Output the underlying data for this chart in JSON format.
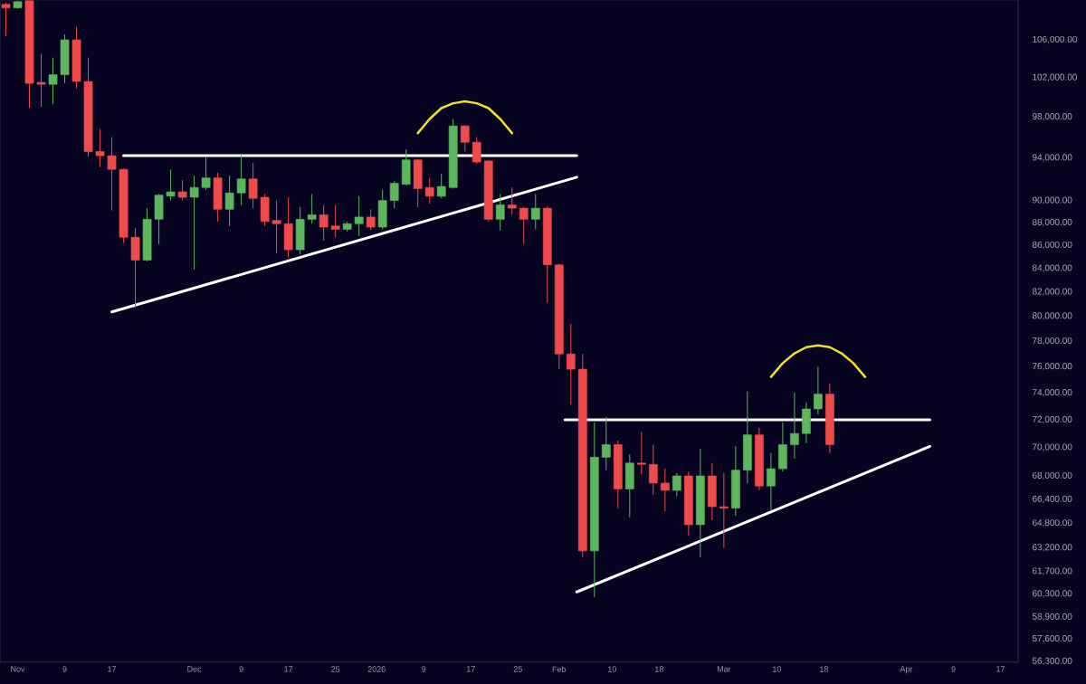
{
  "chart_data": {
    "type": "candlestick",
    "x": [
      "2025-10-30",
      "2025-11-01",
      "2025-11-03",
      "2025-11-05",
      "2025-11-07",
      "2025-11-09",
      "2025-11-11",
      "2025-11-13",
      "2025-11-15",
      "2025-11-17",
      "2025-11-19",
      "2025-11-21",
      "2025-11-23",
      "2025-11-25",
      "2025-11-27",
      "2025-11-29",
      "2025-12-01",
      "2025-12-03",
      "2025-12-05",
      "2025-12-07",
      "2025-12-09",
      "2025-12-11",
      "2025-12-13",
      "2025-12-15",
      "2025-12-17",
      "2025-12-19",
      "2025-12-21",
      "2025-12-23",
      "2025-12-25",
      "2025-12-27",
      "2025-12-29",
      "2025-12-31",
      "2026-01-02",
      "2026-01-04",
      "2026-01-06",
      "2026-01-08",
      "2026-01-10",
      "2026-01-12",
      "2026-01-14",
      "2026-01-16",
      "2026-01-18",
      "2026-01-20",
      "2026-01-22",
      "2026-01-24",
      "2026-01-26",
      "2026-01-28",
      "2026-01-30",
      "2026-02-01",
      "2026-02-03",
      "2026-02-05",
      "2026-02-07",
      "2026-02-09",
      "2026-02-11",
      "2026-02-13",
      "2026-02-15",
      "2026-02-17",
      "2026-02-19",
      "2026-02-21",
      "2026-02-23",
      "2026-02-25",
      "2026-02-27",
      "2026-03-01",
      "2026-03-03",
      "2026-03-05",
      "2026-03-07",
      "2026-03-09",
      "2026-03-11",
      "2026-03-13",
      "2026-03-15",
      "2026-03-17",
      "2026-03-19"
    ],
    "ohlc": [
      [
        109900,
        110100,
        106400,
        109500
      ],
      [
        109500,
        110300,
        109400,
        110200
      ],
      [
        110300,
        110300,
        98900,
        101400
      ],
      [
        101500,
        104500,
        99000,
        101300
      ],
      [
        101300,
        104100,
        99300,
        102300
      ],
      [
        102300,
        106600,
        101400,
        106000
      ],
      [
        106000,
        107400,
        100900,
        101600
      ],
      [
        101600,
        104100,
        94100,
        94600
      ],
      [
        94600,
        96800,
        93100,
        94200
      ],
      [
        94200,
        96000,
        89100,
        92900
      ],
      [
        92900,
        93000,
        86200,
        86700
      ],
      [
        86700,
        87500,
        80700,
        84700
      ],
      [
        84700,
        89300,
        84600,
        88300
      ],
      [
        88300,
        90600,
        86100,
        90500
      ],
      [
        90400,
        92900,
        90000,
        90800
      ],
      [
        90800,
        91900,
        90000,
        90300
      ],
      [
        90300,
        92300,
        83900,
        91200
      ],
      [
        91200,
        94100,
        91000,
        92100
      ],
      [
        92100,
        92600,
        88100,
        89200
      ],
      [
        89200,
        92300,
        87700,
        90700
      ],
      [
        90700,
        94400,
        89600,
        92000
      ],
      [
        92000,
        93500,
        89300,
        90200
      ],
      [
        90300,
        90600,
        87700,
        88100
      ],
      [
        88200,
        90000,
        85300,
        87900
      ],
      [
        87900,
        90300,
        84900,
        85600
      ],
      [
        85600,
        89400,
        85200,
        88300
      ],
      [
        88300,
        90600,
        87900,
        88700
      ],
      [
        88700,
        89600,
        86400,
        87600
      ],
      [
        87700,
        89600,
        86700,
        87400
      ],
      [
        87400,
        88100,
        87200,
        87900
      ],
      [
        87900,
        90400,
        86800,
        88500
      ],
      [
        88500,
        89200,
        87300,
        87600
      ],
      [
        87600,
        91000,
        87400,
        90000
      ],
      [
        90000,
        91800,
        89300,
        91600
      ],
      [
        91500,
        94800,
        91400,
        93800
      ],
      [
        93800,
        93900,
        89400,
        91100
      ],
      [
        91200,
        92100,
        89700,
        90400
      ],
      [
        90400,
        92500,
        90200,
        91300
      ],
      [
        91200,
        97800,
        91100,
        97100
      ],
      [
        97100,
        97200,
        94600,
        95500
      ],
      [
        95500,
        96000,
        93400,
        93600
      ],
      [
        93700,
        93800,
        88100,
        88300
      ],
      [
        88300,
        90600,
        87300,
        89600
      ],
      [
        89600,
        91200,
        88700,
        89300
      ],
      [
        89300,
        89400,
        86100,
        88300
      ],
      [
        88300,
        90600,
        87400,
        89300
      ],
      [
        89300,
        89500,
        81100,
        84300
      ],
      [
        84300,
        84400,
        75800,
        77000
      ],
      [
        77000,
        79400,
        73100,
        75800
      ],
      [
        75800,
        77000,
        62600,
        63000
      ],
      [
        63000,
        71800,
        60100,
        69300
      ],
      [
        69300,
        72200,
        68400,
        70200
      ],
      [
        70200,
        70500,
        65800,
        67100
      ],
      [
        67100,
        69500,
        65200,
        68900
      ],
      [
        68900,
        71100,
        68100,
        68800
      ],
      [
        68800,
        70200,
        66700,
        67500
      ],
      [
        67500,
        68500,
        65600,
        67000
      ],
      [
        67000,
        68200,
        66600,
        68000
      ],
      [
        68000,
        68300,
        64000,
        64700
      ],
      [
        64700,
        69900,
        62600,
        68000
      ],
      [
        68000,
        68900,
        65000,
        65900
      ],
      [
        65900,
        68200,
        63200,
        65800
      ],
      [
        65800,
        70100,
        65300,
        68400
      ],
      [
        68400,
        74100,
        67500,
        70900
      ],
      [
        70900,
        71400,
        67000,
        67300
      ],
      [
        67300,
        69600,
        65600,
        68500
      ],
      [
        68500,
        71800,
        68300,
        70200
      ],
      [
        70200,
        74000,
        69200,
        71000
      ],
      [
        71000,
        73300,
        70300,
        72800
      ],
      [
        72800,
        76000,
        72400,
        73900
      ],
      [
        73900,
        74700,
        69600,
        70200
      ]
    ],
    "colors": [
      "#ef4b4c",
      "#5cb65b",
      "#ef4b4c",
      "#ef4b4c",
      "#5cb65b",
      "#5cb65b",
      "#ef4b4c",
      "#ef4b4c",
      "#ef4b4c",
      "#ef4b4c",
      "#ef4b4c",
      "#ef4b4c",
      "#5cb65b",
      "#5cb65b",
      "#5cb65b",
      "#ef4b4c",
      "#5cb65b",
      "#5cb65b",
      "#ef4b4c",
      "#5cb65b",
      "#5cb65b",
      "#ef4b4c",
      "#ef4b4c",
      "#ef4b4c",
      "#ef4b4c",
      "#5cb65b",
      "#5cb65b",
      "#ef4b4c",
      "#ef4b4c",
      "#5cb65b",
      "#5cb65b",
      "#ef4b4c",
      "#5cb65b",
      "#5cb65b",
      "#5cb65b",
      "#ef4b4c",
      "#ef4b4c",
      "#5cb65b",
      "#5cb65b",
      "#ef4b4c",
      "#ef4b4c",
      "#ef4b4c",
      "#5cb65b",
      "#ef4b4c",
      "#ef4b4c",
      "#5cb65b",
      "#ef4b4c",
      "#ef4b4c",
      "#ef4b4c",
      "#ef4b4c",
      "#5cb65b",
      "#5cb65b",
      "#ef4b4c",
      "#5cb65b",
      "#ef4b4c",
      "#ef4b4c",
      "#ef4b4c",
      "#5cb65b",
      "#ef4b4c",
      "#5cb65b",
      "#ef4b4c",
      "#ef4b4c",
      "#5cb65b",
      "#5cb65b",
      "#ef4b4c",
      "#5cb65b",
      "#5cb65b",
      "#5cb65b",
      "#5cb65b",
      "#5cb65b",
      "#ef4b4c"
    ],
    "series": [
      {
        "type": "line",
        "color": "#ffffff",
        "x": [
          "2025-11-19",
          "2026-02-04"
        ],
        "values": [
          94200,
          94200
        ]
      },
      {
        "type": "line",
        "color": "#ffffff",
        "x": [
          "2025-11-17",
          "2026-02-04"
        ],
        "values": [
          80350,
          92160
        ]
      },
      {
        "type": "line",
        "color": "#ffffff",
        "x": [
          "2026-02-02",
          "2026-04-05"
        ],
        "values": [
          72000,
          72000
        ]
      },
      {
        "type": "line",
        "color": "#ffffff",
        "x": [
          "2026-02-04",
          "2026-04-05"
        ],
        "values": [
          60420,
          70070
        ]
      },
      {
        "type": "line",
        "color": "#f2e02a",
        "x": [
          "2026-01-08",
          "2026-01-10",
          "2026-01-12",
          "2026-01-14",
          "2026-01-16",
          "2026-01-18",
          "2026-01-20",
          "2026-01-22",
          "2026-01-24"
        ],
        "values": [
          96390,
          97790,
          98880,
          99370,
          99560,
          99370,
          98880,
          97790,
          96390
        ]
      },
      {
        "type": "line",
        "color": "#f2e02a",
        "x": [
          "2026-03-09",
          "2026-03-11",
          "2026-03-13",
          "2026-03-15",
          "2026-03-17",
          "2026-03-19",
          "2026-03-21",
          "2026-03-23",
          "2026-03-25"
        ],
        "values": [
          75210,
          76270,
          77040,
          77520,
          77670,
          77520,
          77040,
          76270,
          75210
        ]
      }
    ],
    "xlim": [
      "2025-10-29",
      "2026-04-20"
    ],
    "xticks": [
      {
        "value": "2025-11-01",
        "label": "Nov"
      },
      {
        "value": "2025-11-09",
        "label": "9"
      },
      {
        "value": "2025-11-17",
        "label": "17"
      },
      {
        "value": "2025-12-01",
        "label": "Dec"
      },
      {
        "value": "2025-12-09",
        "label": "9"
      },
      {
        "value": "2025-12-17",
        "label": "17"
      },
      {
        "value": "2025-12-25",
        "label": "25"
      },
      {
        "value": "2026-01-01",
        "label": "2026"
      },
      {
        "value": "2026-01-09",
        "label": "9"
      },
      {
        "value": "2026-01-17",
        "label": "17"
      },
      {
        "value": "2026-01-25",
        "label": "25"
      },
      {
        "value": "2026-02-01",
        "label": "Feb"
      },
      {
        "value": "2026-02-10",
        "label": "10"
      },
      {
        "value": "2026-02-18",
        "label": "18"
      },
      {
        "value": "2026-03-01",
        "label": "Mar"
      },
      {
        "value": "2026-03-10",
        "label": "10"
      },
      {
        "value": "2026-03-18",
        "label": "18"
      },
      {
        "value": "2026-04-01",
        "label": "Apr"
      },
      {
        "value": "2026-04-09",
        "label": "9"
      },
      {
        "value": "2026-04-17",
        "label": "17"
      }
    ],
    "ylim": [
      56250,
      110400
    ],
    "yticks": [
      {
        "value": 106000,
        "label": "106,000.00"
      },
      {
        "value": 102000,
        "label": "102,000.00"
      },
      {
        "value": 98000,
        "label": "98,000.00"
      },
      {
        "value": 94000,
        "label": "94,000.00"
      },
      {
        "value": 90000,
        "label": "90,000.00"
      },
      {
        "value": 88000,
        "label": "88,000.00"
      },
      {
        "value": 86000,
        "label": "86,000.00"
      },
      {
        "value": 84000,
        "label": "84,000.00"
      },
      {
        "value": 82000,
        "label": "82,000.00"
      },
      {
        "value": 80000,
        "label": "80,000.00"
      },
      {
        "value": 78000,
        "label": "78,000.00"
      },
      {
        "value": 76000,
        "label": "76,000.00"
      },
      {
        "value": 74000,
        "label": "74,000.00"
      },
      {
        "value": 72000,
        "label": "72,000.00"
      },
      {
        "value": 70000,
        "label": "70,000.00"
      },
      {
        "value": 68000,
        "label": "68,000.00"
      },
      {
        "value": 66400,
        "label": "66,400.00"
      },
      {
        "value": 64800,
        "label": "64,800.00"
      },
      {
        "value": 63200,
        "label": "63,200.00"
      },
      {
        "value": 61700,
        "label": "61,700.00"
      },
      {
        "value": 60300,
        "label": "60,300.00"
      },
      {
        "value": 58900,
        "label": "58,900.00"
      },
      {
        "value": 57600,
        "label": "57,600.00"
      },
      {
        "value": 56300,
        "label": "56,300.00"
      }
    ],
    "log": true
  }
}
